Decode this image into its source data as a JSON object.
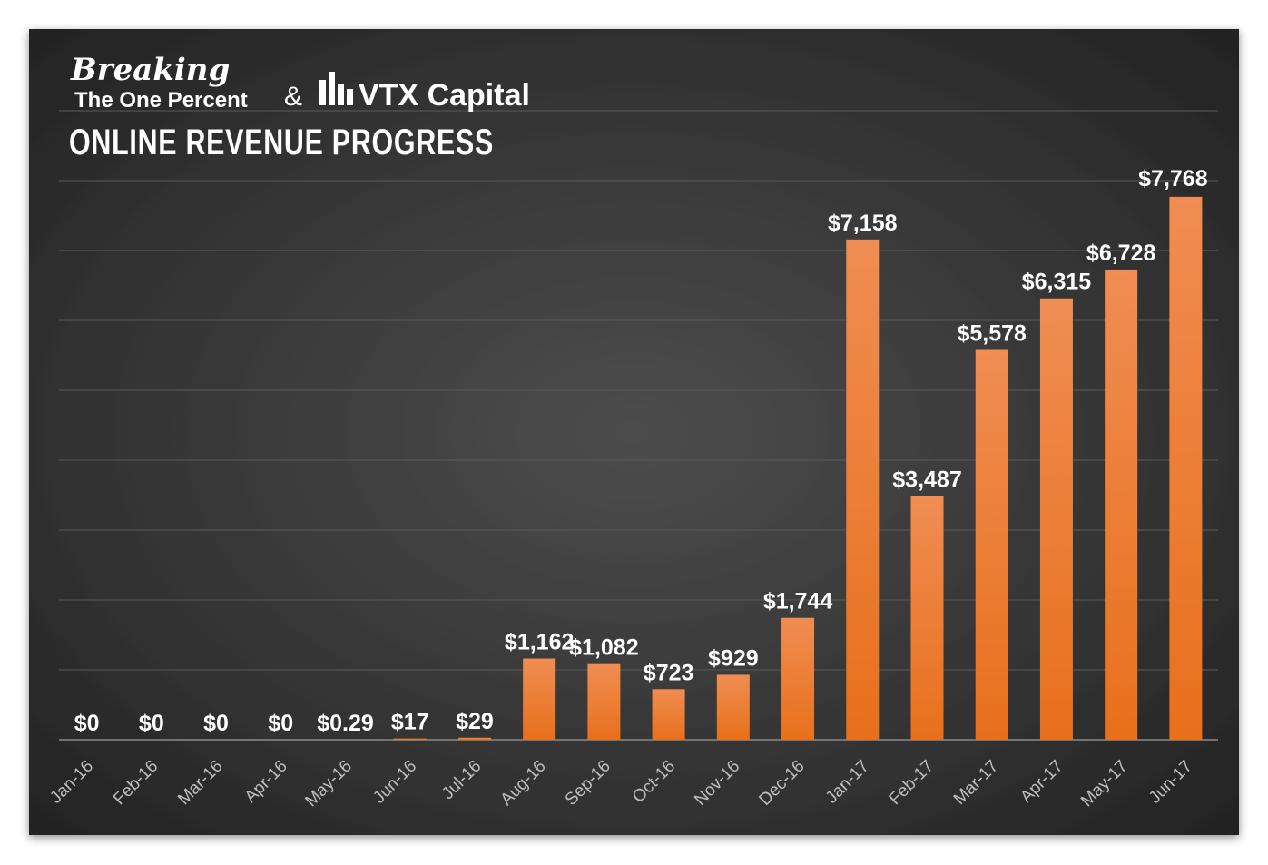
{
  "chart_data": {
    "type": "bar",
    "title": "ONLINE REVENUE PROGRESS",
    "annotations": [
      "Breaking",
      "The One Percent",
      "&",
      "VTX Capital"
    ],
    "categories": [
      "Jan-16",
      "Feb-16",
      "Mar-16",
      "Apr-16",
      "May-16",
      "Jun-16",
      "Jul-16",
      "Aug-16",
      "Sep-16",
      "Oct-16",
      "Nov-16",
      "Dec-16",
      "Jan-17",
      "Feb-17",
      "Mar-17",
      "Apr-17",
      "May-17",
      "Jun-17"
    ],
    "values": [
      0,
      0,
      0,
      0,
      0.29,
      17,
      29,
      1162,
      1082,
      723,
      929,
      1744,
      7158,
      3487,
      5578,
      6315,
      6728,
      7768
    ],
    "value_labels": [
      "$0",
      "$0",
      "$0",
      "$0",
      "$0.29",
      "$17",
      "$29",
      "$1,162",
      "$1,082",
      "$723",
      "$929",
      "$1,744",
      "$7,158",
      "$3,487",
      "$5,578",
      "$6,315",
      "$6,728",
      "$7,768"
    ],
    "color": "#ec7a2c",
    "ylim": [
      0,
      9000
    ],
    "yticks": [
      0,
      1000,
      2000,
      3000,
      4000,
      5000,
      6000,
      7000,
      8000,
      9000
    ],
    "grid": true
  }
}
